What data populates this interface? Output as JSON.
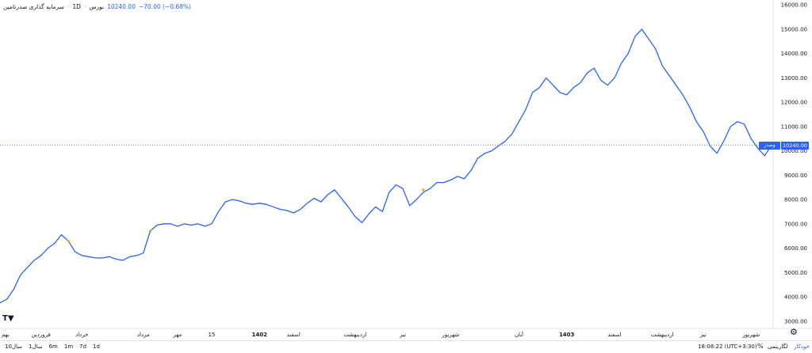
{
  "header": {
    "title": "سرمایه گذاری صدرتامین",
    "interval": "1D",
    "exchange": "بورس",
    "price": "10240.00",
    "change": "−70.00 (−0.68%)"
  },
  "price_tag": "10240.00",
  "symbol_tag": "وصدر",
  "bottom_bar": {
    "ranges": [
      "10سال",
      "1سال",
      "6m",
      "1m",
      "7d",
      "1d"
    ],
    "time": "18:08:22 (UTC+3:30)",
    "percent": "%",
    "log": "لگاریتمی",
    "auto": "خودکار"
  },
  "chart_data": {
    "type": "line",
    "title": "سرمایه گذاری صدرتامین",
    "xlabel": "",
    "ylabel": "",
    "ylim": [
      2700,
      16200
    ],
    "yticks": [
      3000,
      4000,
      5000,
      6000,
      7000,
      8000,
      9000,
      10000,
      11000,
      12000,
      13000,
      14000,
      15000,
      16000
    ],
    "ytick_labels": [
      "3000.00",
      "4000.00",
      "5000.00",
      "6000.00",
      "7000.00",
      "8000.00",
      "9000.00",
      "10000.00",
      "11000.00",
      "12000.00",
      "13000.00",
      "14000.00",
      "15000.00",
      "16000.00"
    ],
    "xticks": [
      {
        "label": "بهم",
        "x": 0
      },
      {
        "label": "فروردین",
        "x": 6
      },
      {
        "label": "خرداد",
        "x": 12
      },
      {
        "label": "مرداد",
        "x": 21
      },
      {
        "label": "مهر",
        "x": 26
      },
      {
        "label": "15",
        "x": 31
      },
      {
        "label": "1402",
        "x": 38
      },
      {
        "label": "اسفند",
        "x": 43
      },
      {
        "label": "اردیبهشت",
        "x": 52
      },
      {
        "label": "تیر",
        "x": 59
      },
      {
        "label": "شهریور",
        "x": 66
      },
      {
        "label": "آبان",
        "x": 76
      },
      {
        "label": "1403",
        "x": 83
      },
      {
        "label": "اسفند",
        "x": 90
      },
      {
        "label": "اردیبهشت",
        "x": 97
      },
      {
        "label": "تیر",
        "x": 103
      },
      {
        "label": "شهریور",
        "x": 110
      }
    ],
    "last_value": 10240,
    "series": [
      {
        "color": "#2962ff",
        "x": [
          0,
          1,
          2,
          3,
          4,
          5,
          6,
          7,
          8,
          9,
          10,
          11,
          12,
          13,
          14,
          15,
          16,
          17,
          18,
          19,
          20,
          21,
          22,
          23,
          24,
          25,
          26,
          27,
          28,
          29,
          30,
          31,
          32,
          33,
          34,
          35,
          36,
          37,
          38,
          39,
          40,
          41,
          42,
          43,
          44,
          45,
          46,
          47,
          48,
          49,
          50,
          51,
          52,
          53,
          54,
          55,
          56,
          57,
          58,
          59,
          60,
          61,
          62,
          63,
          64,
          65,
          66,
          67,
          68,
          69,
          70,
          71,
          72,
          73,
          74,
          75,
          76,
          77,
          78,
          79,
          80,
          81,
          82,
          83,
          84,
          85,
          86,
          87,
          88,
          89,
          90,
          91,
          92,
          93,
          94,
          95,
          96,
          97,
          98,
          99,
          100,
          101,
          102,
          103,
          104,
          105,
          106,
          107,
          108,
          109,
          110,
          111,
          112,
          113
        ],
        "values": [
          3750,
          3900,
          4300,
          4900,
          5200,
          5500,
          5700,
          6000,
          6200,
          6550,
          6300,
          5850,
          5700,
          5650,
          5600,
          5600,
          5650,
          5550,
          5500,
          5650,
          5700,
          5800,
          6700,
          6950,
          7000,
          7000,
          6900,
          7000,
          6950,
          7000,
          6900,
          7000,
          7500,
          7900,
          8000,
          7950,
          7850,
          7800,
          7850,
          7800,
          7700,
          7600,
          7550,
          7450,
          7600,
          7850,
          8050,
          7900,
          8200,
          8400,
          8050,
          7700,
          7300,
          7050,
          7400,
          7700,
          7500,
          8300,
          8600,
          8450,
          7750,
          8000,
          8300,
          8450,
          8700,
          8700,
          8800,
          8950,
          8850,
          9200,
          9700,
          9900,
          10000,
          10200,
          10400,
          10700,
          11200,
          11700,
          12400,
          12600,
          13000,
          12700,
          12400,
          12300,
          12600,
          12800,
          13200,
          13400,
          12900,
          12700,
          13000,
          13600,
          14000,
          14700,
          15000,
          14600,
          14200,
          13500,
          13100,
          12700,
          12300,
          11800,
          11200,
          10800,
          10200,
          9900,
          10400,
          11000,
          11200,
          11100,
          10500,
          10100,
          9800,
          10240
        ]
      }
    ],
    "markers": [
      {
        "x": 10,
        "y": 6300,
        "color": "#f59f0b"
      },
      {
        "x": 22,
        "y": 6700,
        "color": "#f59f0b"
      },
      {
        "x": 62,
        "y": 8400,
        "color": "#f59f0b"
      }
    ],
    "grid": false,
    "legend": "none"
  }
}
